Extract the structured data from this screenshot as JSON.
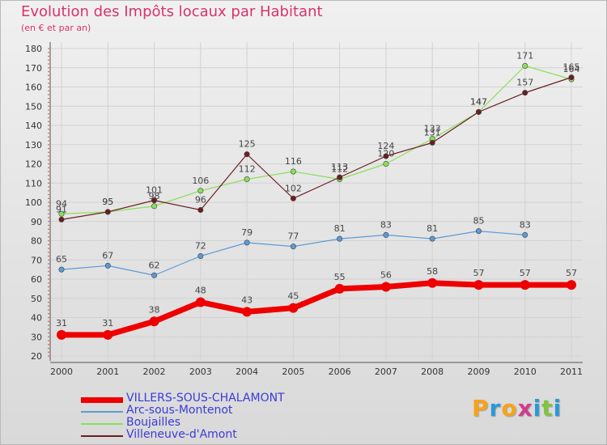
{
  "title": "Evolution des Impôts locaux par Habitant",
  "subtitle": "(en € et par an)",
  "logo": {
    "letters": [
      "P",
      "r",
      "o",
      "x",
      "i",
      "t",
      "i"
    ],
    "colors": [
      "#f6a31b",
      "#2a9ad6",
      "#f6a31b",
      "#d23c8e",
      "#2a9ad6",
      "#82c341",
      "#2a9ad6"
    ]
  },
  "chart_data": {
    "type": "line",
    "title": "Evolution des Impôts locaux par Habitant",
    "subtitle": "(en € et par an)",
    "x": [
      "2000",
      "2001",
      "2002",
      "2003",
      "2004",
      "2005",
      "2006",
      "2007",
      "2008",
      "2009",
      "2010",
      "2011"
    ],
    "ylim": [
      20,
      180
    ],
    "yticks": [
      20,
      30,
      40,
      50,
      60,
      70,
      80,
      90,
      100,
      110,
      120,
      130,
      140,
      150,
      160,
      170,
      180
    ],
    "grid": true,
    "series": [
      {
        "name": "VILLERS-SOUS-CHALAMONT",
        "color": "#ee0000",
        "width": 7,
        "values": [
          31,
          31,
          38,
          48,
          43,
          45,
          55,
          56,
          58,
          57,
          57,
          57
        ]
      },
      {
        "name": "Arc-sous-Montenot",
        "color": "#5b9bd5",
        "width": 1.2,
        "values": [
          65,
          67,
          62,
          72,
          79,
          77,
          81,
          83,
          81,
          85,
          83,
          null
        ]
      },
      {
        "name": "Boujailles",
        "color": "#8be05a",
        "width": 1.2,
        "values": [
          94,
          95,
          98,
          106,
          112,
          116,
          112,
          120,
          133,
          147,
          171,
          164
        ]
      },
      {
        "name": "Villeneuve-d'Amont",
        "color": "#6b1f1f",
        "width": 1.2,
        "values": [
          91,
          95,
          101,
          96,
          125,
          102,
          113,
          124,
          131,
          147,
          157,
          165
        ]
      }
    ]
  }
}
